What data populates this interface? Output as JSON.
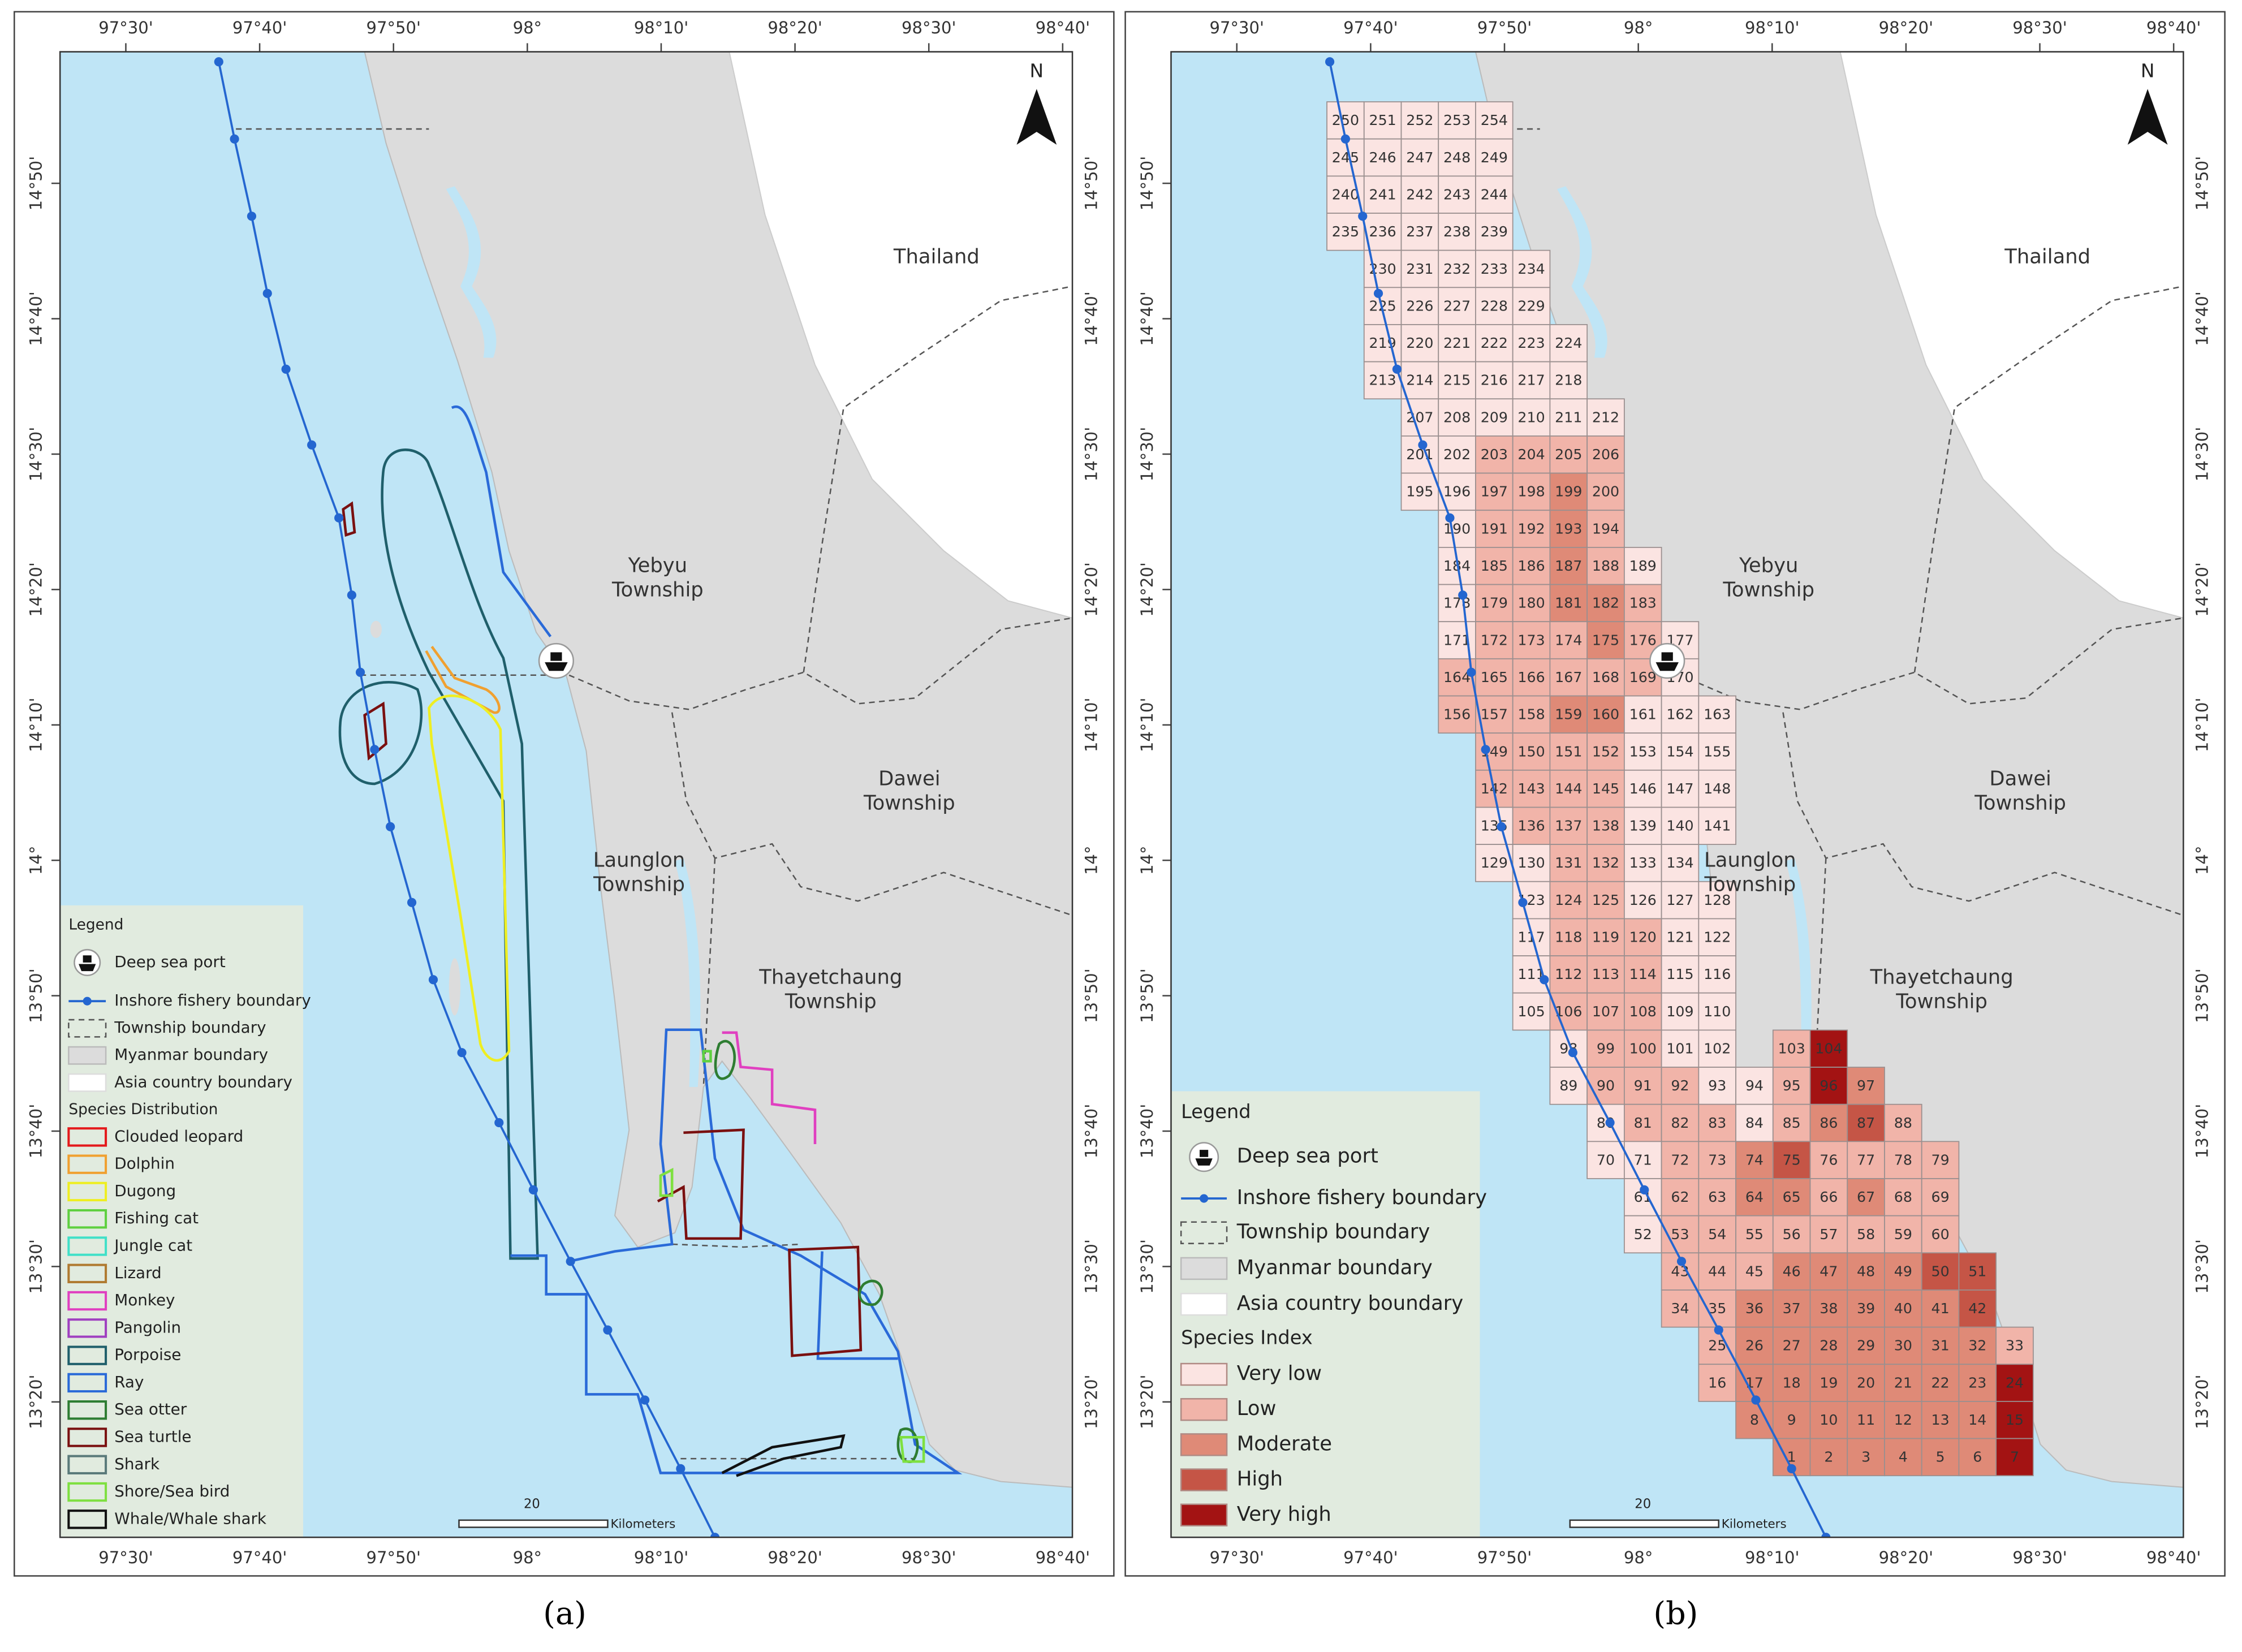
{
  "lon_labels": [
    "97°30'",
    "97°40'",
    "97°50'",
    "98°",
    "98°10'",
    "98°20'",
    "98°30'",
    "98°40'"
  ],
  "lat_labels": [
    "14°50'",
    "14°40'",
    "14°30'",
    "14°20'",
    "14°10'",
    "14°",
    "13°50'",
    "13°40'",
    "13°30'",
    "13°20'"
  ],
  "north": "N",
  "places": [
    {
      "lines": [
        "Thailand"
      ]
    },
    {
      "lines": [
        "Yebyu",
        "Township"
      ]
    },
    {
      "lines": [
        "Dawei",
        "Township"
      ]
    },
    {
      "lines": [
        "Launglon",
        "Township"
      ]
    },
    {
      "lines": [
        "Thayetchaung",
        "Township"
      ]
    }
  ],
  "scale": {
    "label": "20",
    "unit": "Kilometers"
  },
  "legend": {
    "title": "Legend",
    "items": [
      "Deep sea port",
      "Inshore fishery boundary",
      "Township boundary",
      "Myanmar boundary",
      "Asia country boundary"
    ]
  },
  "panels": [
    {
      "caption": "(a)",
      "legend_section": "Species Distribution",
      "species": [
        {
          "name": "Clouded leopard",
          "color": "#e41a1c"
        },
        {
          "name": "Dolphin",
          "color": "#f0a030"
        },
        {
          "name": "Dugong",
          "color": "#eeee22"
        },
        {
          "name": "Fishing cat",
          "color": "#5fd040"
        },
        {
          "name": "Jungle cat",
          "color": "#40e0c8"
        },
        {
          "name": "Lizard",
          "color": "#b07a30"
        },
        {
          "name": "Monkey",
          "color": "#e040c0"
        },
        {
          "name": "Pangolin",
          "color": "#a040c0"
        },
        {
          "name": "Porpoise",
          "color": "#1f5f6b"
        },
        {
          "name": "Ray",
          "color": "#2a6ad8"
        },
        {
          "name": "Sea otter",
          "color": "#2e7d32"
        },
        {
          "name": "Sea turtle",
          "color": "#7a1010"
        },
        {
          "name": "Shark",
          "color": "#5a7a7a"
        },
        {
          "name": "Shore/Sea bird",
          "color": "#7ee040"
        },
        {
          "name": "Whale/Whale shark",
          "color": "#111111"
        }
      ]
    },
    {
      "caption": "(b)",
      "legend_section": "Species Index",
      "classes": [
        {
          "name": "Very low",
          "color": "#fbe4e2"
        },
        {
          "name": "Low",
          "color": "#f1b4a9"
        },
        {
          "name": "Moderate",
          "color": "#df8a77"
        },
        {
          "name": "High",
          "color": "#c55546"
        },
        {
          "name": "Very high",
          "color": "#a31313"
        }
      ],
      "grid": {
        "rows": [
          {
            "labels": [
              250,
              251,
              252,
              253,
              254
            ],
            "levels": [
              0,
              0,
              0,
              0,
              0
            ]
          },
          {
            "labels": [
              245,
              246,
              247,
              248,
              249
            ],
            "levels": [
              0,
              0,
              0,
              0,
              0
            ]
          },
          {
            "labels": [
              240,
              241,
              242,
              243,
              244
            ],
            "levels": [
              0,
              0,
              0,
              0,
              0
            ]
          },
          {
            "labels": [
              235,
              236,
              237,
              238,
              239
            ],
            "levels": [
              0,
              0,
              0,
              0,
              0
            ]
          },
          {
            "labels": [
              230,
              231,
              232,
              233,
              234
            ],
            "levels": [
              0,
              0,
              0,
              0,
              0
            ]
          },
          {
            "labels": [
              225,
              226,
              227,
              228,
              229
            ],
            "levels": [
              0,
              0,
              0,
              0,
              0
            ]
          },
          {
            "labels": [
              219,
              220,
              221,
              222,
              223,
              224
            ],
            "levels": [
              0,
              0,
              0,
              0,
              0,
              0
            ]
          },
          {
            "labels": [
              213,
              214,
              215,
              216,
              217,
              218
            ],
            "levels": [
              0,
              0,
              0,
              0,
              0,
              0
            ]
          },
          {
            "labels": [
              207,
              208,
              209,
              210,
              211,
              212
            ],
            "levels": [
              0,
              0,
              0,
              0,
              0,
              0
            ]
          },
          {
            "labels": [
              201,
              202,
              203,
              204,
              205,
              206
            ],
            "levels": [
              0,
              0,
              1,
              1,
              1,
              1
            ]
          },
          {
            "labels": [
              195,
              196,
              197,
              198,
              199,
              200
            ],
            "levels": [
              0,
              0,
              1,
              1,
              2,
              1
            ]
          },
          {
            "labels": [
              190,
              191,
              192,
              193,
              194
            ],
            "levels": [
              0,
              1,
              1,
              2,
              1
            ]
          },
          {
            "labels": [
              184,
              185,
              186,
              187,
              188,
              189
            ],
            "levels": [
              0,
              1,
              1,
              2,
              1,
              0
            ]
          },
          {
            "labels": [
              178,
              179,
              180,
              181,
              182,
              183
            ],
            "levels": [
              0,
              1,
              1,
              2,
              2,
              1
            ]
          },
          {
            "labels": [
              171,
              172,
              173,
              174,
              175,
              176,
              177
            ],
            "levels": [
              0,
              1,
              1,
              1,
              2,
              1,
              0
            ]
          },
          {
            "labels": [
              164,
              165,
              166,
              167,
              168,
              169,
              170
            ],
            "levels": [
              1,
              1,
              1,
              1,
              1,
              1,
              0
            ]
          },
          {
            "labels": [
              156,
              157,
              158,
              159,
              160,
              161,
              162,
              163
            ],
            "levels": [
              1,
              1,
              1,
              2,
              2,
              0,
              0,
              0
            ]
          },
          {
            "labels": [
              149,
              150,
              151,
              152,
              153,
              154,
              155
            ],
            "levels": [
              1,
              1,
              1,
              1,
              0,
              0,
              0
            ]
          },
          {
            "labels": [
              142,
              143,
              144,
              145,
              146,
              147,
              148
            ],
            "levels": [
              1,
              1,
              1,
              1,
              0,
              0,
              0
            ]
          },
          {
            "labels": [
              135,
              136,
              137,
              138,
              139,
              140,
              141
            ],
            "levels": [
              0,
              1,
              1,
              1,
              0,
              0,
              0
            ]
          },
          {
            "labels": [
              129,
              130,
              131,
              132,
              133,
              134
            ],
            "levels": [
              0,
              0,
              1,
              1,
              0,
              0
            ]
          },
          {
            "labels": [
              123,
              124,
              125,
              126,
              127,
              128
            ],
            "levels": [
              0,
              1,
              1,
              0,
              0,
              0
            ]
          },
          {
            "labels": [
              117,
              118,
              119,
              120,
              121,
              122
            ],
            "levels": [
              0,
              1,
              1,
              1,
              0,
              0
            ]
          },
          {
            "labels": [
              111,
              112,
              113,
              114,
              115,
              116
            ],
            "levels": [
              0,
              1,
              1,
              1,
              0,
              0
            ]
          },
          {
            "labels": [
              105,
              106,
              107,
              108,
              109,
              110
            ],
            "levels": [
              0,
              1,
              1,
              1,
              0,
              0
            ]
          },
          {
            "labels": [
              98,
              99,
              100,
              101,
              102,
              103,
              104
            ],
            "levels": [
              0,
              1,
              1,
              0,
              0,
              1,
              4
            ]
          },
          {
            "labels": [
              89,
              90,
              91,
              92,
              93,
              94,
              95,
              96,
              97
            ],
            "levels": [
              0,
              1,
              1,
              1,
              0,
              0,
              1,
              4,
              2
            ]
          },
          {
            "labels": [
              80,
              81,
              82,
              83,
              84,
              85,
              86,
              87,
              88
            ],
            "levels": [
              0,
              1,
              1,
              1,
              0,
              1,
              2,
              3,
              1
            ]
          },
          {
            "labels": [
              70,
              71,
              72,
              73,
              74,
              75,
              76,
              77,
              78,
              79
            ],
            "levels": [
              0,
              0,
              1,
              1,
              2,
              3,
              1,
              1,
              1,
              1
            ]
          },
          {
            "labels": [
              61,
              62,
              63,
              64,
              65,
              66,
              67,
              68,
              69
            ],
            "levels": [
              0,
              1,
              1,
              2,
              2,
              1,
              2,
              1,
              1
            ]
          },
          {
            "labels": [
              52,
              53,
              54,
              55,
              56,
              57,
              58,
              59,
              60
            ],
            "levels": [
              0,
              1,
              1,
              1,
              1,
              1,
              1,
              1,
              1
            ]
          },
          {
            "labels": [
              43,
              44,
              45,
              46,
              47,
              48,
              49,
              50,
              51
            ],
            "levels": [
              1,
              1,
              1,
              2,
              2,
              2,
              2,
              3,
              3
            ]
          },
          {
            "labels": [
              34,
              35,
              36,
              37,
              38,
              39,
              40,
              41,
              42
            ],
            "levels": [
              1,
              1,
              2,
              2,
              2,
              2,
              2,
              2,
              3
            ]
          },
          {
            "labels": [
              25,
              26,
              27,
              28,
              29,
              30,
              31,
              32,
              33
            ],
            "levels": [
              1,
              2,
              2,
              2,
              2,
              2,
              2,
              2,
              1
            ]
          },
          {
            "labels": [
              16,
              17,
              18,
              19,
              20,
              21,
              22,
              23,
              24
            ],
            "levels": [
              1,
              2,
              2,
              2,
              2,
              2,
              2,
              2,
              4
            ]
          },
          {
            "labels": [
              8,
              9,
              10,
              11,
              12,
              13,
              14,
              15
            ],
            "levels": [
              2,
              2,
              2,
              2,
              2,
              2,
              2,
              4
            ]
          },
          {
            "labels": [
              1,
              2,
              3,
              4,
              5,
              6,
              7
            ],
            "levels": [
              2,
              2,
              2,
              2,
              2,
              2,
              4
            ]
          }
        ]
      }
    }
  ]
}
